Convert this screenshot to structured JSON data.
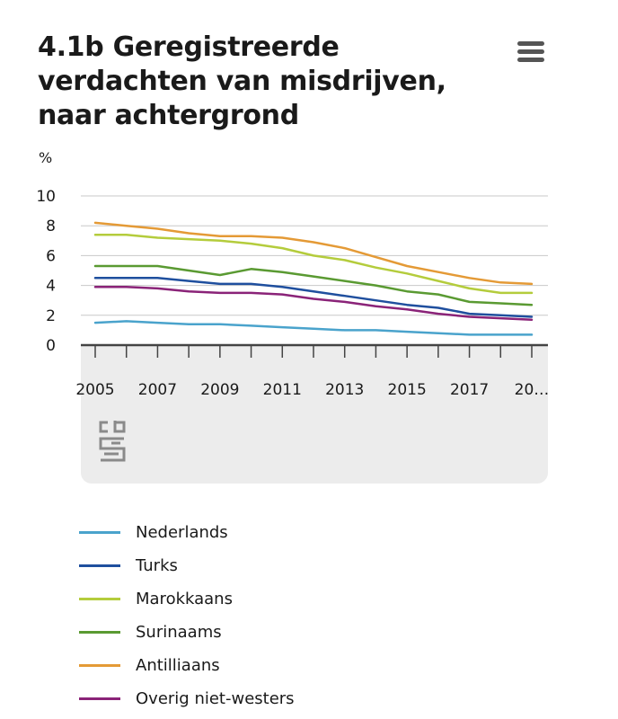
{
  "header": {
    "title": "4.1b Geregistreerde verdachten van misdrijven, naar achtergrond"
  },
  "chart_data": {
    "type": "line",
    "title": "4.1b Geregistreerde verdachten van misdrijven, naar achtergrond",
    "ylabel": "%",
    "xlabel": "",
    "ylim": [
      0,
      10
    ],
    "yticks": [
      "0",
      "2",
      "4",
      "6",
      "8",
      "10"
    ],
    "x": [
      2005,
      2006,
      2007,
      2008,
      2009,
      2010,
      2011,
      2012,
      2013,
      2014,
      2015,
      2016,
      2017,
      2018,
      2019
    ],
    "xtick_labels": [
      "2005",
      "2007",
      "2009",
      "2011",
      "2013",
      "2015",
      "2017",
      "20…"
    ],
    "grid": true,
    "legend_position": "bottom",
    "series": [
      {
        "name": "Nederlands",
        "color": "#4aa3cc",
        "values": [
          1.5,
          1.6,
          1.5,
          1.4,
          1.4,
          1.3,
          1.2,
          1.1,
          1.0,
          1.0,
          0.9,
          0.8,
          0.7,
          0.7,
          0.7
        ]
      },
      {
        "name": "Turks",
        "color": "#1f4f9e",
        "values": [
          4.5,
          4.5,
          4.5,
          4.3,
          4.1,
          4.1,
          3.9,
          3.6,
          3.3,
          3.0,
          2.7,
          2.5,
          2.1,
          2.0,
          1.9
        ]
      },
      {
        "name": "Marokkaans",
        "color": "#b4cc3c",
        "values": [
          7.4,
          7.4,
          7.2,
          7.1,
          7.0,
          6.8,
          6.5,
          6.0,
          5.7,
          5.2,
          4.8,
          4.3,
          3.8,
          3.5,
          3.5
        ]
      },
      {
        "name": "Surinaams",
        "color": "#5a9a32",
        "values": [
          5.3,
          5.3,
          5.3,
          5.0,
          4.7,
          5.1,
          4.9,
          4.6,
          4.3,
          4.0,
          3.6,
          3.4,
          2.9,
          2.8,
          2.7
        ]
      },
      {
        "name": "Antilliaans",
        "color": "#e49a36",
        "values": [
          8.2,
          8.0,
          7.8,
          7.5,
          7.3,
          7.3,
          7.2,
          6.9,
          6.5,
          5.9,
          5.3,
          4.9,
          4.5,
          4.2,
          4.1
        ]
      },
      {
        "name": "Overig niet-westers",
        "color": "#8a2378",
        "values": [
          3.9,
          3.9,
          3.8,
          3.6,
          3.5,
          3.5,
          3.4,
          3.1,
          2.9,
          2.6,
          2.4,
          2.1,
          1.9,
          1.8,
          1.7
        ]
      }
    ]
  }
}
